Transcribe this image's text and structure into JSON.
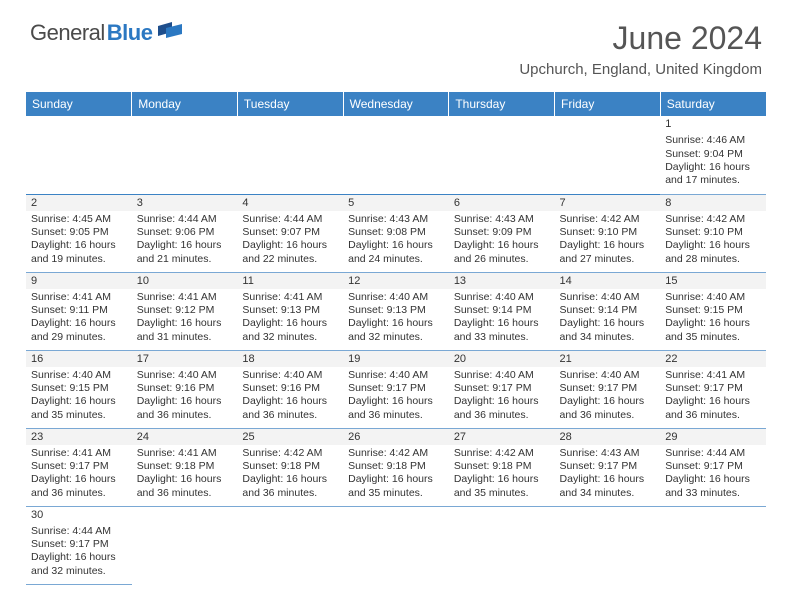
{
  "brand": {
    "name1": "General",
    "name2": "Blue",
    "name1_color": "#4a4a4a",
    "name2_color": "#2b78c2",
    "flag_colors": [
      "#1e4e8c",
      "#2b78c2"
    ]
  },
  "title": "June 2024",
  "location": "Upchurch, England, United Kingdom",
  "header_bg": "#3b82c4",
  "header_fg": "#ffffff",
  "border_color": "#3b82c4",
  "daynum_bg": "#f3f3f3",
  "days_of_week": [
    "Sunday",
    "Monday",
    "Tuesday",
    "Wednesday",
    "Thursday",
    "Friday",
    "Saturday"
  ],
  "weeks": [
    [
      null,
      null,
      null,
      null,
      null,
      null,
      {
        "n": "1",
        "sunrise": "Sunrise: 4:46 AM",
        "sunset": "Sunset: 9:04 PM",
        "daylight": "Daylight: 16 hours and 17 minutes."
      }
    ],
    [
      {
        "n": "2",
        "sunrise": "Sunrise: 4:45 AM",
        "sunset": "Sunset: 9:05 PM",
        "daylight": "Daylight: 16 hours and 19 minutes."
      },
      {
        "n": "3",
        "sunrise": "Sunrise: 4:44 AM",
        "sunset": "Sunset: 9:06 PM",
        "daylight": "Daylight: 16 hours and 21 minutes."
      },
      {
        "n": "4",
        "sunrise": "Sunrise: 4:44 AM",
        "sunset": "Sunset: 9:07 PM",
        "daylight": "Daylight: 16 hours and 22 minutes."
      },
      {
        "n": "5",
        "sunrise": "Sunrise: 4:43 AM",
        "sunset": "Sunset: 9:08 PM",
        "daylight": "Daylight: 16 hours and 24 minutes."
      },
      {
        "n": "6",
        "sunrise": "Sunrise: 4:43 AM",
        "sunset": "Sunset: 9:09 PM",
        "daylight": "Daylight: 16 hours and 26 minutes."
      },
      {
        "n": "7",
        "sunrise": "Sunrise: 4:42 AM",
        "sunset": "Sunset: 9:10 PM",
        "daylight": "Daylight: 16 hours and 27 minutes."
      },
      {
        "n": "8",
        "sunrise": "Sunrise: 4:42 AM",
        "sunset": "Sunset: 9:10 PM",
        "daylight": "Daylight: 16 hours and 28 minutes."
      }
    ],
    [
      {
        "n": "9",
        "sunrise": "Sunrise: 4:41 AM",
        "sunset": "Sunset: 9:11 PM",
        "daylight": "Daylight: 16 hours and 29 minutes."
      },
      {
        "n": "10",
        "sunrise": "Sunrise: 4:41 AM",
        "sunset": "Sunset: 9:12 PM",
        "daylight": "Daylight: 16 hours and 31 minutes."
      },
      {
        "n": "11",
        "sunrise": "Sunrise: 4:41 AM",
        "sunset": "Sunset: 9:13 PM",
        "daylight": "Daylight: 16 hours and 32 minutes."
      },
      {
        "n": "12",
        "sunrise": "Sunrise: 4:40 AM",
        "sunset": "Sunset: 9:13 PM",
        "daylight": "Daylight: 16 hours and 32 minutes."
      },
      {
        "n": "13",
        "sunrise": "Sunrise: 4:40 AM",
        "sunset": "Sunset: 9:14 PM",
        "daylight": "Daylight: 16 hours and 33 minutes."
      },
      {
        "n": "14",
        "sunrise": "Sunrise: 4:40 AM",
        "sunset": "Sunset: 9:14 PM",
        "daylight": "Daylight: 16 hours and 34 minutes."
      },
      {
        "n": "15",
        "sunrise": "Sunrise: 4:40 AM",
        "sunset": "Sunset: 9:15 PM",
        "daylight": "Daylight: 16 hours and 35 minutes."
      }
    ],
    [
      {
        "n": "16",
        "sunrise": "Sunrise: 4:40 AM",
        "sunset": "Sunset: 9:15 PM",
        "daylight": "Daylight: 16 hours and 35 minutes."
      },
      {
        "n": "17",
        "sunrise": "Sunrise: 4:40 AM",
        "sunset": "Sunset: 9:16 PM",
        "daylight": "Daylight: 16 hours and 36 minutes."
      },
      {
        "n": "18",
        "sunrise": "Sunrise: 4:40 AM",
        "sunset": "Sunset: 9:16 PM",
        "daylight": "Daylight: 16 hours and 36 minutes."
      },
      {
        "n": "19",
        "sunrise": "Sunrise: 4:40 AM",
        "sunset": "Sunset: 9:17 PM",
        "daylight": "Daylight: 16 hours and 36 minutes."
      },
      {
        "n": "20",
        "sunrise": "Sunrise: 4:40 AM",
        "sunset": "Sunset: 9:17 PM",
        "daylight": "Daylight: 16 hours and 36 minutes."
      },
      {
        "n": "21",
        "sunrise": "Sunrise: 4:40 AM",
        "sunset": "Sunset: 9:17 PM",
        "daylight": "Daylight: 16 hours and 36 minutes."
      },
      {
        "n": "22",
        "sunrise": "Sunrise: 4:41 AM",
        "sunset": "Sunset: 9:17 PM",
        "daylight": "Daylight: 16 hours and 36 minutes."
      }
    ],
    [
      {
        "n": "23",
        "sunrise": "Sunrise: 4:41 AM",
        "sunset": "Sunset: 9:17 PM",
        "daylight": "Daylight: 16 hours and 36 minutes."
      },
      {
        "n": "24",
        "sunrise": "Sunrise: 4:41 AM",
        "sunset": "Sunset: 9:18 PM",
        "daylight": "Daylight: 16 hours and 36 minutes."
      },
      {
        "n": "25",
        "sunrise": "Sunrise: 4:42 AM",
        "sunset": "Sunset: 9:18 PM",
        "daylight": "Daylight: 16 hours and 36 minutes."
      },
      {
        "n": "26",
        "sunrise": "Sunrise: 4:42 AM",
        "sunset": "Sunset: 9:18 PM",
        "daylight": "Daylight: 16 hours and 35 minutes."
      },
      {
        "n": "27",
        "sunrise": "Sunrise: 4:42 AM",
        "sunset": "Sunset: 9:18 PM",
        "daylight": "Daylight: 16 hours and 35 minutes."
      },
      {
        "n": "28",
        "sunrise": "Sunrise: 4:43 AM",
        "sunset": "Sunset: 9:17 PM",
        "daylight": "Daylight: 16 hours and 34 minutes."
      },
      {
        "n": "29",
        "sunrise": "Sunrise: 4:44 AM",
        "sunset": "Sunset: 9:17 PM",
        "daylight": "Daylight: 16 hours and 33 minutes."
      }
    ],
    [
      {
        "n": "30",
        "sunrise": "Sunrise: 4:44 AM",
        "sunset": "Sunset: 9:17 PM",
        "daylight": "Daylight: 16 hours and 32 minutes."
      },
      null,
      null,
      null,
      null,
      null,
      null
    ]
  ]
}
